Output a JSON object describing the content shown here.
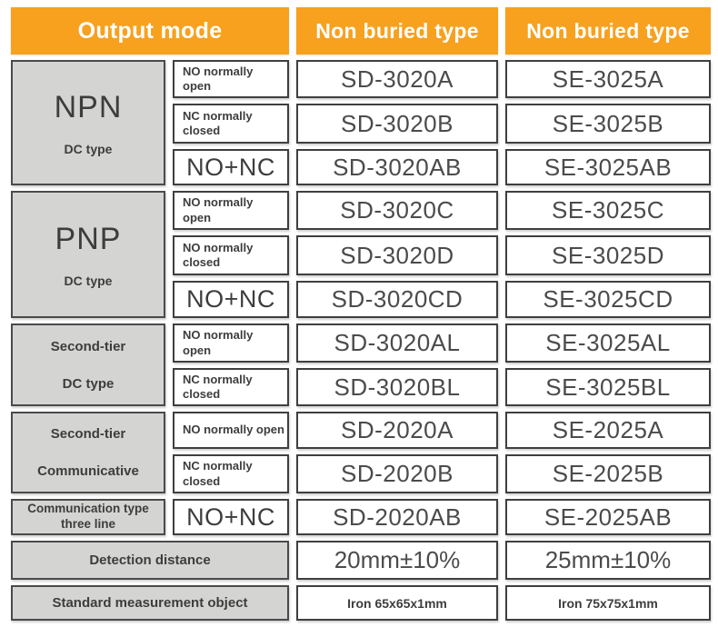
{
  "palette": {
    "orange": "#F7A11E",
    "gray_fill": "#D4D4D2",
    "border": "#3F3F3F",
    "text_dark": "#3D3D3D",
    "text_model": "#4B4B4B"
  },
  "header": {
    "output_mode": "Output mode",
    "sd_col": "Non buried type",
    "se_col": "Non buried type"
  },
  "sections": [
    {
      "label_line1": "NPN",
      "label_line2": "DC type",
      "rows": [
        {
          "mode": "NO normally\nopen",
          "sd": "SD-3020A",
          "se": "SE-3025A"
        },
        {
          "mode": "NC normally\nclosed",
          "sd": "SD-3020B",
          "se": "SE-3025B"
        },
        {
          "mode": "NO+NC",
          "sd": "SD-3020AB",
          "se": "SE-3025AB"
        }
      ]
    },
    {
      "label_line1": "PNP",
      "label_line2": "DC type",
      "rows": [
        {
          "mode": "NO normally\nopen",
          "sd": "SD-3020C",
          "se": "SE-3025C"
        },
        {
          "mode": "NO normally\nclosed",
          "sd": "SD-3020D",
          "se": "SE-3025D"
        },
        {
          "mode": "NO+NC",
          "sd": "SD-3020CD",
          "se": "SE-3025CD"
        }
      ]
    },
    {
      "label_line1": "Second-tier",
      "label_line2": "DC type",
      "rows": [
        {
          "mode": "NO normally\nopen",
          "sd": "SD-3020AL",
          "se": "SE-3025AL"
        },
        {
          "mode": "NC normally\nclosed",
          "sd": "SD-3020BL",
          "se": "SE-3025BL"
        }
      ]
    },
    {
      "label_line1": "Second-tier",
      "label_line2": "Communicative",
      "rows": [
        {
          "mode": "NO normally open",
          "sd": "SD-2020A",
          "se": "SE-2025A"
        },
        {
          "mode": "NC normally\nclosed",
          "sd": "SD-2020B",
          "se": "SE-2025B"
        }
      ]
    },
    {
      "label_line1": "Communication type\nthree line",
      "label_line2": "",
      "rows": [
        {
          "mode": "NO+NC",
          "sd": "SD-2020AB",
          "se": "SE-2025AB"
        }
      ]
    }
  ],
  "footer_rows": [
    {
      "label": "Detection distance",
      "sd": "20mm±10%",
      "se": "25mm±10%"
    },
    {
      "label": "Standard measurement object",
      "sd": "Iron 65x65x1mm",
      "se": "Iron 75x75x1mm"
    }
  ]
}
